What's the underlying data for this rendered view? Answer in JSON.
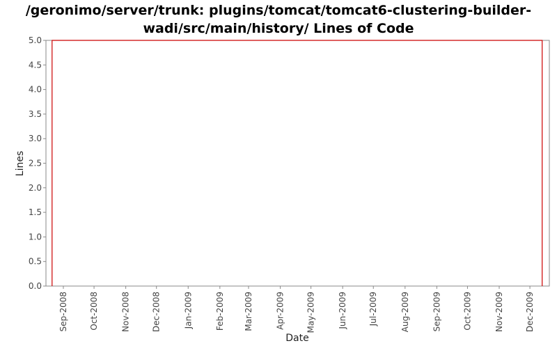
{
  "title_lines": [
    "/geronimo/server/trunk: plugins/tomcat/tomcat6-clustering-builder-",
    "wadi/src/main/history/ Lines of Code"
  ],
  "chart_data": {
    "type": "line",
    "title": "/geronimo/server/trunk: plugins/tomcat/tomcat6-clustering-builder-wadi/src/main/history/ Lines of Code",
    "xlabel": "Date",
    "ylabel": "Lines",
    "ylim": [
      0.0,
      5.0
    ],
    "yticks": [
      "0.0",
      "0.5",
      "1.0",
      "1.5",
      "2.0",
      "2.5",
      "3.0",
      "3.5",
      "4.0",
      "4.5",
      "5.0"
    ],
    "xlim": [
      "2008-08-15",
      "2009-12-20"
    ],
    "xticks": [
      {
        "date": "2008-09-01",
        "label": "Sep-2008"
      },
      {
        "date": "2008-10-01",
        "label": "Oct-2008"
      },
      {
        "date": "2008-11-01",
        "label": "Nov-2008"
      },
      {
        "date": "2008-12-01",
        "label": "Dec-2008"
      },
      {
        "date": "2009-01-01",
        "label": "Jan-2009"
      },
      {
        "date": "2009-02-01",
        "label": "Feb-2009"
      },
      {
        "date": "2009-03-01",
        "label": "Mar-2009"
      },
      {
        "date": "2009-04-01",
        "label": "Apr-2009"
      },
      {
        "date": "2009-05-01",
        "label": "May-2009"
      },
      {
        "date": "2009-06-01",
        "label": "Jun-2009"
      },
      {
        "date": "2009-07-01",
        "label": "Jul-2009"
      },
      {
        "date": "2009-08-01",
        "label": "Aug-2009"
      },
      {
        "date": "2009-09-01",
        "label": "Sep-2009"
      },
      {
        "date": "2009-10-01",
        "label": "Oct-2009"
      },
      {
        "date": "2009-11-01",
        "label": "Nov-2009"
      },
      {
        "date": "2009-12-01",
        "label": "Dec-2009"
      }
    ],
    "series": [
      {
        "color": "#cc0000",
        "points": [
          {
            "x": "2008-08-21",
            "y": 0
          },
          {
            "x": "2008-08-21",
            "y": 5
          },
          {
            "x": "2009-12-13",
            "y": 5
          },
          {
            "x": "2009-12-13",
            "y": 0
          }
        ]
      }
    ],
    "grid": false,
    "legend": "none"
  }
}
